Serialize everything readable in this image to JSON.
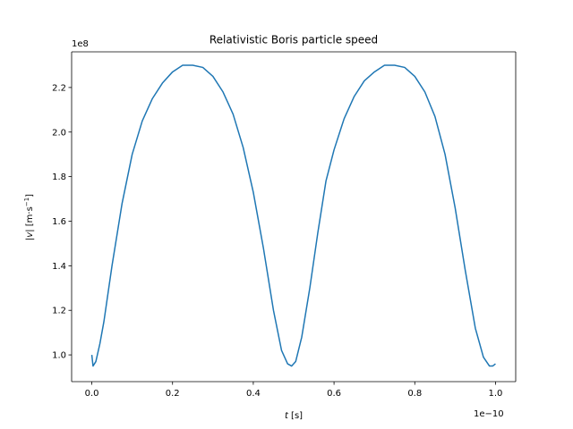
{
  "chart_data": {
    "type": "line",
    "title": "Relativistic Boris particle speed",
    "xlabel_var": "t",
    "xlabel_unit": " [s]",
    "ylabel_pre": "|",
    "ylabel_var": "v",
    "ylabel_post": "| [m·s",
    "ylabel_sup": "−1",
    "ylabel_close": "]",
    "x_offset_text": "1e−10",
    "y_offset_text": "1e8",
    "x_multiplier": 1e-10,
    "y_multiplier": 100000000.0,
    "xlim": [
      -0.05,
      1.05
    ],
    "ylim": [
      0.88,
      2.36
    ],
    "x_ticks": [
      0.0,
      0.2,
      0.4,
      0.6,
      0.8,
      1.0
    ],
    "x_tick_labels": [
      "0.0",
      "0.2",
      "0.4",
      "0.6",
      "0.8",
      "1.0"
    ],
    "y_ticks": [
      1.0,
      1.2,
      1.4,
      1.6,
      1.8,
      2.0,
      2.2
    ],
    "y_tick_labels": [
      "1.0",
      "1.2",
      "1.4",
      "1.6",
      "1.8",
      "2.0",
      "2.2"
    ],
    "grid": false,
    "line_color": "#1f77b4",
    "series": [
      {
        "x": [
          0.0,
          0.003,
          0.01,
          0.02,
          0.03,
          0.05,
          0.075,
          0.1,
          0.125,
          0.15,
          0.175,
          0.2,
          0.225,
          0.25,
          0.275,
          0.3,
          0.325,
          0.35,
          0.375,
          0.4,
          0.425,
          0.45,
          0.47,
          0.485,
          0.495,
          0.505,
          0.52,
          0.54,
          0.56,
          0.58,
          0.6,
          0.625,
          0.65,
          0.675,
          0.7,
          0.725,
          0.75,
          0.775,
          0.8,
          0.825,
          0.85,
          0.875,
          0.9,
          0.925,
          0.95,
          0.97,
          0.985,
          0.993,
          1.0
        ],
        "y": [
          1.0,
          0.95,
          0.97,
          1.05,
          1.15,
          1.4,
          1.68,
          1.9,
          2.05,
          2.15,
          2.22,
          2.27,
          2.3,
          2.3,
          2.29,
          2.25,
          2.18,
          2.08,
          1.93,
          1.73,
          1.48,
          1.2,
          1.02,
          0.96,
          0.95,
          0.97,
          1.08,
          1.3,
          1.55,
          1.78,
          1.92,
          2.06,
          2.16,
          2.23,
          2.27,
          2.3,
          2.3,
          2.29,
          2.25,
          2.18,
          2.07,
          1.9,
          1.66,
          1.38,
          1.12,
          0.99,
          0.95,
          0.95,
          0.96
        ]
      }
    ]
  }
}
